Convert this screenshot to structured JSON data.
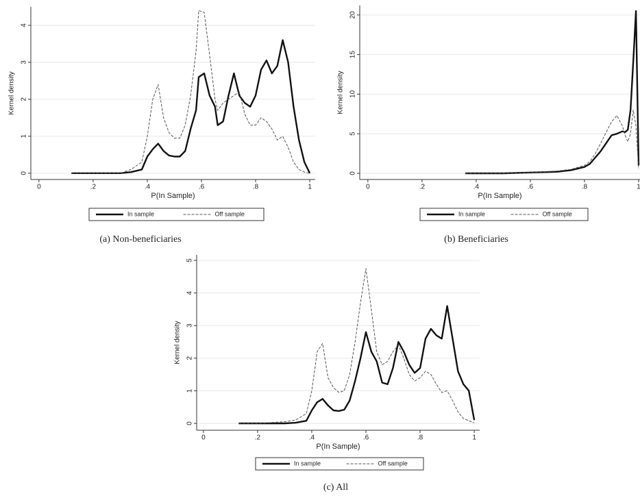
{
  "chart_data": [
    {
      "type": "line",
      "caption": "(a) Non-beneficiaries",
      "xlabel": "P(In Sample)",
      "ylabel": "Kernel density",
      "xlim": [
        -0.03,
        1.02
      ],
      "ylim": [
        -0.17,
        4.5
      ],
      "xticks": [
        0,
        {
          "value": 0.2,
          "label": ".2"
        },
        {
          "value": 0.4,
          "label": ".4"
        },
        {
          "value": 0.6,
          "label": ".6"
        },
        {
          "value": 0.8,
          "label": ".8"
        },
        1
      ],
      "yticks": [
        0,
        1,
        2,
        3,
        4
      ],
      "grid": true,
      "x": [
        0.12,
        0.2,
        0.3,
        0.34,
        0.38,
        0.4,
        0.42,
        0.44,
        0.46,
        0.48,
        0.5,
        0.52,
        0.54,
        0.56,
        0.58,
        0.59,
        0.61,
        0.63,
        0.65,
        0.66,
        0.68,
        0.7,
        0.72,
        0.74,
        0.76,
        0.78,
        0.8,
        0.82,
        0.84,
        0.86,
        0.88,
        0.9,
        0.92,
        0.94,
        0.96,
        0.98,
        1.0
      ],
      "series": [
        {
          "name": "In sample",
          "color": "#111111",
          "style": "solid",
          "values": [
            0,
            0,
            0,
            0.03,
            0.1,
            0.45,
            0.65,
            0.8,
            0.6,
            0.48,
            0.45,
            0.45,
            0.6,
            1.2,
            1.7,
            2.6,
            2.7,
            2.1,
            1.8,
            1.3,
            1.4,
            2.1,
            2.7,
            2.1,
            1.9,
            1.8,
            2.1,
            2.8,
            3.05,
            2.7,
            2.9,
            3.6,
            3.0,
            1.8,
            0.9,
            0.3,
            0
          ]
        },
        {
          "name": "Off sample",
          "color": "#555555",
          "style": "dashed",
          "values": [
            0,
            0,
            0,
            0.1,
            0.3,
            1.0,
            2.0,
            2.4,
            1.5,
            1.1,
            0.95,
            0.95,
            1.3,
            2.1,
            3.3,
            4.4,
            4.35,
            3.2,
            2.0,
            1.7,
            1.9,
            2.0,
            2.1,
            2.2,
            1.6,
            1.3,
            1.3,
            1.5,
            1.4,
            1.2,
            0.9,
            1.0,
            0.7,
            0.3,
            0.1,
            0.03,
            0
          ]
        }
      ]
    },
    {
      "type": "line",
      "caption": "(b) Beneficiaries",
      "xlabel": "P(In Sample)",
      "ylabel": "Kernel density",
      "xlim": [
        -0.03,
        1.005
      ],
      "ylim": [
        -0.78,
        21.2
      ],
      "xticks": [
        0,
        {
          "value": 0.2,
          "label": ".2"
        },
        {
          "value": 0.4,
          "label": ".4"
        },
        {
          "value": 0.6,
          "label": ".6"
        },
        {
          "value": 0.8,
          "label": ".8"
        },
        1
      ],
      "yticks": [
        0,
        5,
        10,
        15,
        20
      ],
      "grid": true,
      "x": [
        0.36,
        0.4,
        0.5,
        0.6,
        0.7,
        0.75,
        0.8,
        0.82,
        0.84,
        0.86,
        0.88,
        0.9,
        0.92,
        0.94,
        0.95,
        0.96,
        0.97,
        0.98,
        0.99,
        1.0
      ],
      "series": [
        {
          "name": "In sample",
          "color": "#111111",
          "style": "solid",
          "values": [
            0,
            0,
            0,
            0.1,
            0.2,
            0.4,
            0.8,
            1.2,
            2,
            2.8,
            3.8,
            4.8,
            5,
            5.3,
            5.2,
            5.5,
            8,
            14,
            20.5,
            1
          ]
        },
        {
          "name": "Off sample",
          "color": "#555555",
          "style": "dashed",
          "values": [
            0,
            0,
            0,
            0.1,
            0.3,
            0.5,
            1,
            1.5,
            2.5,
            3.8,
            5.2,
            6.5,
            7.3,
            6,
            4.8,
            4,
            5,
            8,
            6,
            0.5
          ]
        }
      ]
    },
    {
      "type": "line",
      "caption": "(c) All",
      "xlabel": "P(In Sample)",
      "ylabel": "Kernel density",
      "xlim": [
        -0.025,
        1.02
      ],
      "ylim": [
        -0.21,
        5.17
      ],
      "xticks": [
        0,
        {
          "value": 0.2,
          "label": ".2"
        },
        {
          "value": 0.4,
          "label": ".4"
        },
        {
          "value": 0.6,
          "label": ".6"
        },
        {
          "value": 0.8,
          "label": ".8"
        },
        1
      ],
      "yticks": [
        0,
        1,
        2,
        3,
        4,
        5
      ],
      "grid": true,
      "x": [
        0.13,
        0.2,
        0.3,
        0.34,
        0.38,
        0.4,
        0.42,
        0.44,
        0.46,
        0.48,
        0.5,
        0.52,
        0.54,
        0.56,
        0.58,
        0.6,
        0.62,
        0.64,
        0.66,
        0.68,
        0.7,
        0.72,
        0.74,
        0.76,
        0.78,
        0.8,
        0.82,
        0.84,
        0.86,
        0.88,
        0.9,
        0.92,
        0.94,
        0.96,
        0.98,
        1.0
      ],
      "series": [
        {
          "name": "In sample",
          "color": "#111111",
          "style": "solid",
          "values": [
            0,
            0,
            0,
            0.02,
            0.08,
            0.4,
            0.65,
            0.75,
            0.55,
            0.4,
            0.38,
            0.42,
            0.7,
            1.3,
            2.0,
            2.8,
            2.2,
            1.9,
            1.25,
            1.2,
            1.7,
            2.5,
            2.2,
            1.8,
            1.55,
            1.7,
            2.6,
            2.9,
            2.7,
            2.6,
            3.6,
            2.6,
            1.6,
            1.2,
            1.0,
            0.1
          ]
        },
        {
          "name": "Off sample",
          "color": "#555555",
          "style": "dashed",
          "values": [
            0,
            0,
            0.05,
            0.1,
            0.3,
            1.0,
            2.2,
            2.45,
            1.4,
            1.1,
            0.95,
            1.0,
            1.5,
            2.5,
            3.7,
            4.75,
            3.5,
            2.2,
            1.8,
            1.9,
            2.2,
            2.4,
            2.0,
            1.5,
            1.3,
            1.4,
            1.6,
            1.5,
            1.2,
            0.95,
            1.0,
            0.7,
            0.35,
            0.15,
            0.08,
            0.02
          ]
        }
      ]
    }
  ]
}
